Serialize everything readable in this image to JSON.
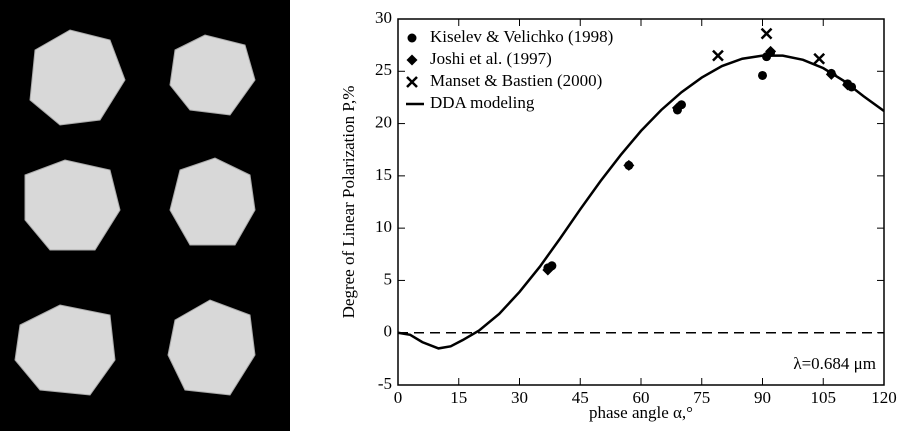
{
  "chart_data": {
    "type": "scatter-line",
    "xlabel": "phase angle α,°",
    "ylabel": "Degree of Linear Polarization P,%",
    "annotation": "λ=0.684 μm",
    "xlim": [
      0,
      120
    ],
    "xticks": [
      0,
      15,
      30,
      45,
      60,
      75,
      90,
      105,
      120
    ],
    "ylim": [
      -5,
      30
    ],
    "yticks": [
      -5,
      0,
      5,
      10,
      15,
      20,
      25,
      30
    ],
    "reference_line": 0,
    "legend": "top-left",
    "series": [
      {
        "name": "Kiselev & Velichko (1998)",
        "marker": "circle",
        "color": "#000000",
        "x": [
          37,
          38,
          57,
          69,
          70,
          90,
          91,
          92,
          107,
          111,
          112
        ],
        "values": [
          6.2,
          6.4,
          16,
          21.3,
          21.8,
          24.6,
          26.4,
          26.8,
          24.8,
          23.8,
          23.5
        ]
      },
      {
        "name": "Joshi et al. (1997)",
        "marker": "diamond",
        "color": "#000000",
        "x": [
          37,
          57,
          69,
          92,
          107,
          111
        ],
        "values": [
          6.0,
          16.0,
          21.5,
          26.9,
          24.7,
          23.7
        ]
      },
      {
        "name": "Manset & Bastien (2000)",
        "marker": "cross",
        "color": "#000000",
        "x": [
          79,
          91,
          104
        ],
        "values": [
          26.5,
          28.6,
          26.2
        ]
      },
      {
        "name": "DDA modeling",
        "marker": "line",
        "color": "#000000",
        "x": [
          0,
          3,
          6,
          10,
          13,
          16,
          20,
          25,
          30,
          35,
          40,
          45,
          50,
          55,
          60,
          65,
          70,
          75,
          80,
          85,
          90,
          95,
          100,
          105,
          110,
          115,
          120
        ],
        "values": [
          0,
          -0.2,
          -0.9,
          -1.5,
          -1.3,
          -0.7,
          0.2,
          1.8,
          3.9,
          6.3,
          9,
          11.8,
          14.5,
          17,
          19.3,
          21.3,
          23,
          24.4,
          25.5,
          26.2,
          26.5,
          26.5,
          26.1,
          25.3,
          24.1,
          22.6,
          21.2
        ]
      }
    ]
  }
}
